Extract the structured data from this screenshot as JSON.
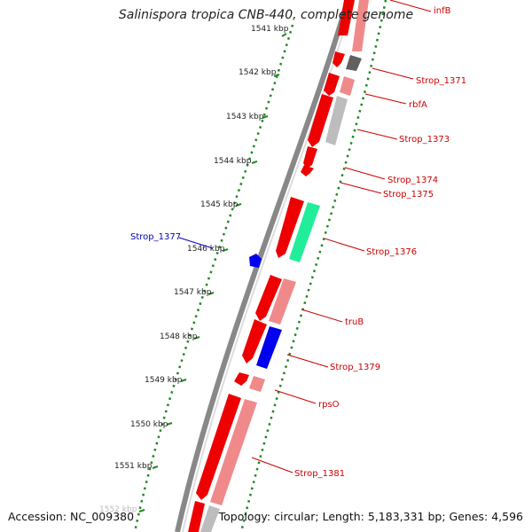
{
  "title": "Salinispora tropica CNB-440, complete genome",
  "footer": {
    "accession": "Accession: NC_009380",
    "topology": "Topology: circular; Length: 5,183,331 bp; Genes: 4,596"
  },
  "ticks": [
    "1541 kbp",
    "1542 kbp",
    "1543 kbp",
    "1544 kbp",
    "1545 kbp",
    "1546 kbp",
    "1547 kbp",
    "1548 kbp",
    "1549 kbp",
    "1550 kbp",
    "1551 kbp",
    "1552 kbp"
  ],
  "gene_labels": [
    {
      "name": "infB",
      "color": "#cc0000"
    },
    {
      "name": "Strop_1371",
      "color": "#cc0000"
    },
    {
      "name": "rbfA",
      "color": "#cc0000"
    },
    {
      "name": "Strop_1373",
      "color": "#cc0000"
    },
    {
      "name": "Strop_1374",
      "color": "#cc0000"
    },
    {
      "name": "Strop_1375",
      "color": "#cc0000"
    },
    {
      "name": "Strop_1376",
      "color": "#cc0000"
    },
    {
      "name": "truB",
      "color": "#cc0000"
    },
    {
      "name": "Strop_1379",
      "color": "#cc0000"
    },
    {
      "name": "rpsO",
      "color": "#cc0000"
    },
    {
      "name": "Strop_1381",
      "color": "#cc0000"
    },
    {
      "name": "Strop_1377",
      "color": "#0000bb"
    }
  ],
  "colors": {
    "forward_gene": "#ee0000",
    "light_gene": "#f08a8a",
    "gray_gene": "#bdbdbd",
    "dark_gene": "#606060",
    "green_gene": "#22ee99",
    "blue_gene": "#0000ee",
    "tick_dots": "#228822",
    "backbone": "#888888"
  }
}
